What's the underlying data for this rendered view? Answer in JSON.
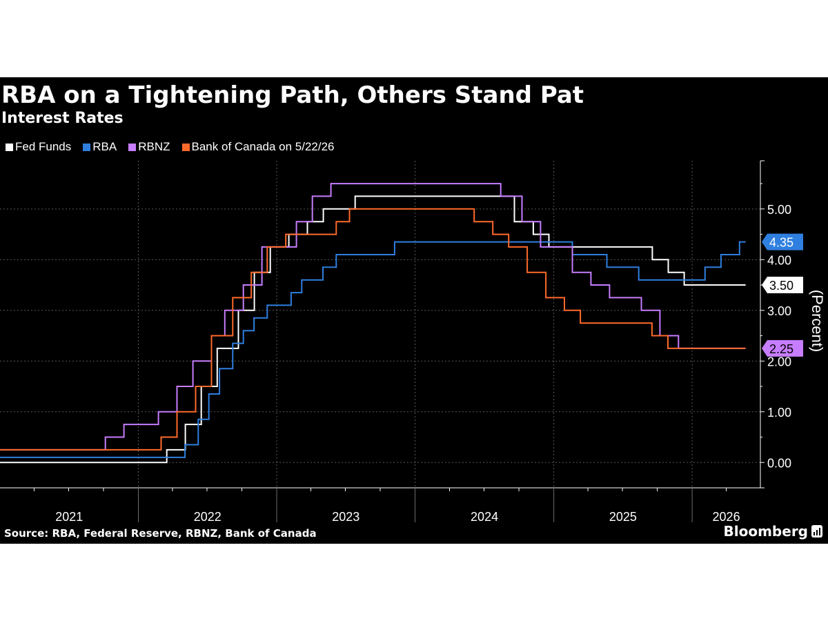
{
  "title": "RBA on a Tightening Path, Others Stand Pat",
  "subtitle": "Interest Rates",
  "source": "Source: RBA, Federal Reserve, RBNZ, Bank of Canada",
  "brand": "Bloomberg",
  "colors": {
    "background": "#000000",
    "text": "#ffffff",
    "grid": "#5a5a5a",
    "fed": "#ffffff",
    "rba": "#2f7fe0",
    "rbnz": "#c77dff",
    "boc": "#ff6a2b"
  },
  "chart_data": {
    "type": "line",
    "step": true,
    "title": "RBA on a Tightening Path, Others Stand Pat",
    "subtitle": "Interest Rates",
    "ylabel": "(Percent)",
    "xlim": [
      "2021-01-01",
      "2026-06-30"
    ],
    "ylim": [
      -0.5,
      5.95
    ],
    "x_ticks": [
      "2021",
      "2022",
      "2023",
      "2024",
      "2025",
      "2026"
    ],
    "y_ticks": [
      "0.00",
      "1.00",
      "2.00",
      "3.00",
      "4.00",
      "5.00"
    ],
    "grid": true,
    "legend_position": "top-left",
    "series": [
      {
        "name": "Fed Funds",
        "key": "fed",
        "color": "#ffffff",
        "last_label": "3.50",
        "points": [
          [
            "2021-01-01",
            0.0
          ],
          [
            "2022-03-17",
            0.25
          ],
          [
            "2022-05-05",
            0.75
          ],
          [
            "2022-06-16",
            1.5
          ],
          [
            "2022-07-28",
            2.25
          ],
          [
            "2022-09-22",
            3.0
          ],
          [
            "2022-11-03",
            3.75
          ],
          [
            "2022-12-15",
            4.25
          ],
          [
            "2023-02-02",
            4.5
          ],
          [
            "2023-03-23",
            4.75
          ],
          [
            "2023-05-04",
            5.0
          ],
          [
            "2023-07-27",
            5.25
          ],
          [
            "2024-09-19",
            4.75
          ],
          [
            "2024-11-08",
            4.5
          ],
          [
            "2024-12-19",
            4.25
          ],
          [
            "2025-09-18",
            4.0
          ],
          [
            "2025-10-30",
            3.75
          ],
          [
            "2025-12-11",
            3.5
          ],
          [
            "2026-05-22",
            3.5
          ]
        ]
      },
      {
        "name": "RBA",
        "key": "rba",
        "color": "#2f7fe0",
        "last_label": "4.35",
        "points": [
          [
            "2021-01-01",
            0.1
          ],
          [
            "2022-05-04",
            0.35
          ],
          [
            "2022-06-08",
            0.85
          ],
          [
            "2022-07-06",
            1.35
          ],
          [
            "2022-08-03",
            1.85
          ],
          [
            "2022-09-07",
            2.35
          ],
          [
            "2022-10-05",
            2.6
          ],
          [
            "2022-11-02",
            2.85
          ],
          [
            "2022-12-07",
            3.1
          ],
          [
            "2023-02-08",
            3.35
          ],
          [
            "2023-03-08",
            3.6
          ],
          [
            "2023-05-03",
            3.85
          ],
          [
            "2023-06-07",
            4.1
          ],
          [
            "2023-11-08",
            4.35
          ],
          [
            "2025-02-19",
            4.1
          ],
          [
            "2025-05-21",
            3.85
          ],
          [
            "2025-08-13",
            3.6
          ],
          [
            "2026-02-04",
            3.85
          ],
          [
            "2026-03-18",
            4.1
          ],
          [
            "2026-05-06",
            4.35
          ],
          [
            "2026-05-22",
            4.35
          ]
        ]
      },
      {
        "name": "RBNZ",
        "key": "rbnz",
        "color": "#c77dff",
        "last_label": "2.25",
        "points": [
          [
            "2021-01-01",
            0.25
          ],
          [
            "2021-10-06",
            0.5
          ],
          [
            "2021-11-24",
            0.75
          ],
          [
            "2022-02-23",
            1.0
          ],
          [
            "2022-04-13",
            1.5
          ],
          [
            "2022-05-25",
            2.0
          ],
          [
            "2022-07-13",
            2.5
          ],
          [
            "2022-08-17",
            3.0
          ],
          [
            "2022-10-05",
            3.5
          ],
          [
            "2022-11-23",
            4.25
          ],
          [
            "2023-02-22",
            4.75
          ],
          [
            "2023-04-05",
            5.25
          ],
          [
            "2023-05-24",
            5.5
          ],
          [
            "2024-08-14",
            5.25
          ],
          [
            "2024-10-09",
            4.75
          ],
          [
            "2024-11-27",
            4.25
          ],
          [
            "2025-02-19",
            3.75
          ],
          [
            "2025-04-09",
            3.5
          ],
          [
            "2025-05-28",
            3.25
          ],
          [
            "2025-08-20",
            3.0
          ],
          [
            "2025-10-08",
            2.5
          ],
          [
            "2025-11-26",
            2.25
          ],
          [
            "2026-05-22",
            2.25
          ]
        ]
      },
      {
        "name": "Bank of Canada on 5/22/26",
        "key": "boc",
        "color": "#ff6a2b",
        "last_label": "2.25",
        "points": [
          [
            "2021-01-01",
            0.25
          ],
          [
            "2022-03-02",
            0.5
          ],
          [
            "2022-04-13",
            1.0
          ],
          [
            "2022-06-01",
            1.5
          ],
          [
            "2022-07-13",
            2.5
          ],
          [
            "2022-09-07",
            3.25
          ],
          [
            "2022-10-26",
            3.75
          ],
          [
            "2022-12-07",
            4.25
          ],
          [
            "2023-01-25",
            4.5
          ],
          [
            "2023-06-07",
            4.75
          ],
          [
            "2023-07-12",
            5.0
          ],
          [
            "2024-06-05",
            4.75
          ],
          [
            "2024-07-24",
            4.5
          ],
          [
            "2024-09-04",
            4.25
          ],
          [
            "2024-10-23",
            3.75
          ],
          [
            "2024-12-11",
            3.25
          ],
          [
            "2025-01-29",
            3.0
          ],
          [
            "2025-03-12",
            2.75
          ],
          [
            "2025-09-17",
            2.5
          ],
          [
            "2025-10-29",
            2.25
          ],
          [
            "2026-05-22",
            2.25
          ]
        ]
      }
    ]
  }
}
